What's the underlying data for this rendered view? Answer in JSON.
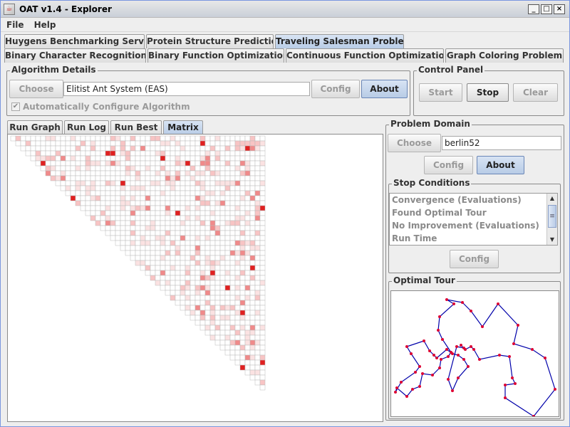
{
  "window": {
    "title": "OAT v1.4 - Explorer",
    "icon": "java-cup-icon",
    "controls": [
      "_",
      "□",
      "×"
    ]
  },
  "menu": [
    "File",
    "Help"
  ],
  "problem_tabs_row1": [
    {
      "label": "Huygens Benchmarking Server",
      "selected": false
    },
    {
      "label": "Protein Structure Prediction",
      "selected": false
    },
    {
      "label": "Traveling Salesman Problem",
      "selected": true
    }
  ],
  "problem_tabs_row2": [
    {
      "label": "Binary Character Recognition"
    },
    {
      "label": "Binary Function Optimization"
    },
    {
      "label": "Continuous Function Optimization"
    },
    {
      "label": "Graph Coloring Problem"
    }
  ],
  "algorithm": {
    "legend": "Algorithm Details",
    "choose_label": "Choose",
    "name": "Elitist Ant System (EAS)",
    "config_label": "Config",
    "about_label": "About",
    "auto_config_label": "Automatically Configure Algorithm",
    "auto_config_checked": true
  },
  "control_panel": {
    "legend": "Control Panel",
    "start_label": "Start",
    "stop_label": "Stop",
    "clear_label": "Clear"
  },
  "view_tabs": [
    {
      "label": "Run Graph",
      "selected": false
    },
    {
      "label": "Run Log",
      "selected": false
    },
    {
      "label": "Run Best",
      "selected": false
    },
    {
      "label": "Matrix",
      "selected": true
    }
  ],
  "problem_domain": {
    "legend": "Problem Domain",
    "choose_label": "Choose",
    "name": "berlin52",
    "config_label": "Config",
    "about_label": "About"
  },
  "stop_conditions": {
    "legend": "Stop Conditions",
    "items": [
      "Convergence (Evaluations)",
      "Found Optimal Tour",
      "No Improvement (Evaluations)",
      "Run Time"
    ],
    "config_label": "Config"
  },
  "optimal_tour": {
    "legend": "Optimal Tour"
  },
  "colors": {
    "accent_tab": "#b8cce6",
    "matrix_high": "#e02020",
    "tour_line": "#0000aa",
    "tour_node": "#dd0033"
  }
}
